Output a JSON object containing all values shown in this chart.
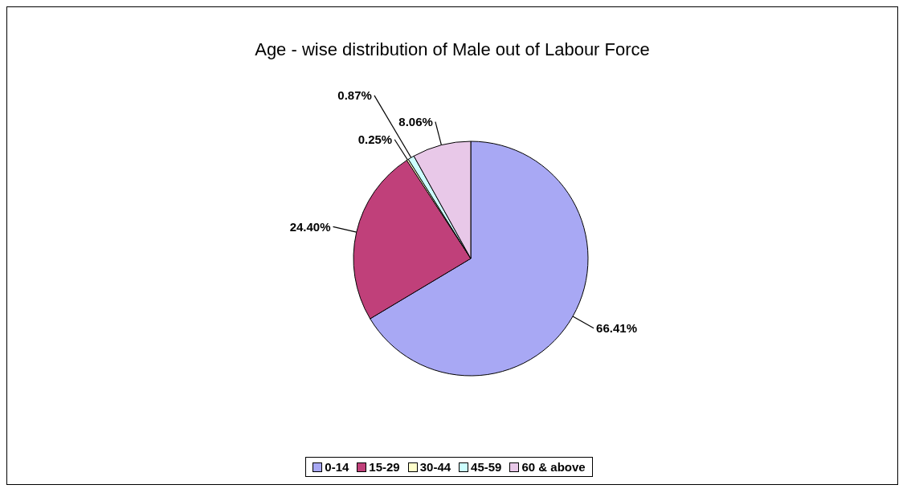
{
  "chart_data": {
    "type": "pie",
    "title": "Age - wise distribution of Male out of Labour Force",
    "categories": [
      "0-14",
      "15-29",
      "30-44",
      "45-59",
      "60 & above"
    ],
    "values": [
      66.41,
      24.4,
      0.25,
      0.87,
      8.06
    ],
    "value_labels": [
      "66.41%",
      "24.40%",
      "0.25%",
      "0.87%",
      "8.06%"
    ],
    "colors": [
      "#a8a8f4",
      "#c0407a",
      "#ffffcc",
      "#ccffff",
      "#e8c8e8"
    ],
    "legend": "bottom"
  }
}
